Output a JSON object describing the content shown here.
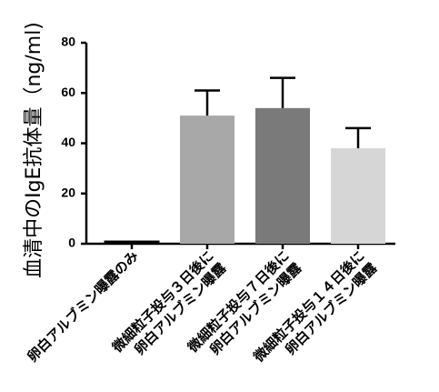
{
  "chart_data": {
    "type": "bar",
    "title": "",
    "xlabel": "",
    "ylabel": "血清中のIgE抗体量（ng/ml)",
    "ylim": [
      0,
      80
    ],
    "yticks": [
      0,
      20,
      40,
      60,
      80
    ],
    "categories": [
      [
        "卵白アルブミン曝露のみ"
      ],
      [
        "微細粒子投与３日後に",
        "卵白アルブミン曝露"
      ],
      [
        "微細粒子投与７日後に",
        "卵白アルブミン曝露"
      ],
      [
        "微細粒子投与１４日後に",
        "卵白アルブミン曝露"
      ]
    ],
    "values": [
      1,
      51,
      54,
      38
    ],
    "error_upper": [
      0,
      10,
      12,
      8
    ],
    "colors": [
      "#000000",
      "#a8a8a8",
      "#7a7a7a",
      "#d6d6d6"
    ],
    "grid": false,
    "legend": "none"
  }
}
